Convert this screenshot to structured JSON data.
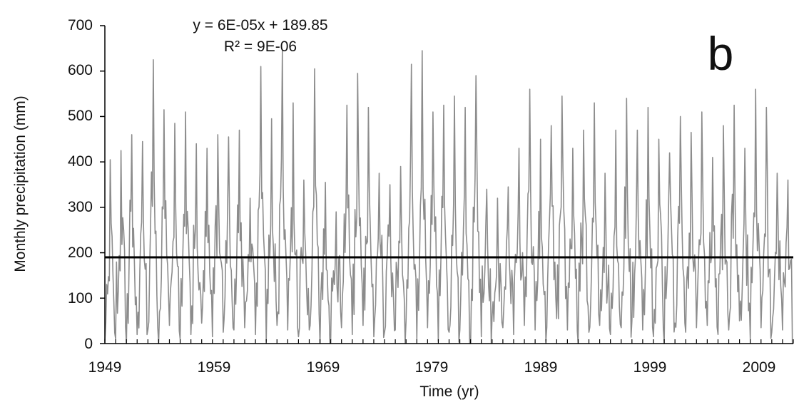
{
  "chart_data": {
    "type": "line",
    "title": "",
    "xlabel": "Time (yr)",
    "ylabel": "Monthly precipitation (mm)",
    "panel_label": "b",
    "equation": "y = 6E-05x + 189.85",
    "r_squared": "R² = 9E-06",
    "xlim": [
      1949,
      2013
    ],
    "ylim": [
      0,
      700
    ],
    "x_ticks": [
      "1949",
      "1959",
      "1969",
      "1979",
      "1989",
      "1999",
      "2009"
    ],
    "y_ticks": [
      "0",
      "100",
      "200",
      "300",
      "400",
      "500",
      "600",
      "700"
    ],
    "grid": false,
    "legend": "none",
    "series": [
      {
        "kind": "monthly",
        "color": "#8c8c8c",
        "start_year": 1949,
        "annual_peaks": [
          405,
          425,
          460,
          445,
          625,
          515,
          485,
          510,
          440,
          430,
          460,
          455,
          470,
          320,
          610,
          495,
          645,
          530,
          360,
          605,
          355,
          290,
          525,
          595,
          520,
          375,
          350,
          390,
          615,
          645,
          510,
          525,
          545,
          520,
          590,
          340,
          320,
          345,
          430,
          560,
          450,
          480,
          545,
          430,
          470,
          530,
          375,
          470,
          540,
          470,
          520,
          450,
          420,
          500,
          465,
          510,
          410,
          480,
          525,
          430,
          560,
          520,
          375,
          360
        ],
        "annual_troughs": [
          5,
          10,
          0,
          20,
          30,
          0,
          40,
          10,
          20,
          45,
          15,
          25,
          30,
          35,
          20,
          5,
          40,
          30,
          15,
          30,
          0,
          10,
          35,
          20,
          40,
          15,
          25,
          30,
          50,
          10,
          35,
          5,
          25,
          30,
          0,
          15,
          60,
          35,
          20,
          40,
          30,
          5,
          55,
          30,
          0,
          25,
          40,
          20,
          35,
          50,
          30,
          15,
          0,
          45,
          25,
          35,
          40,
          20,
          30,
          50,
          10,
          35,
          25,
          30
        ]
      },
      {
        "kind": "trend",
        "color": "#000000",
        "x": [
          1949,
          2013
        ],
        "y": [
          189.85,
          189.9
        ]
      }
    ]
  }
}
